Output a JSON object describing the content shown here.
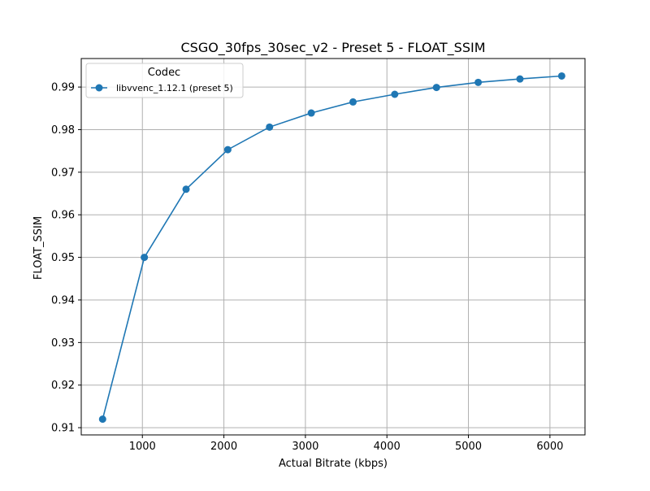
{
  "chart_data": {
    "type": "line",
    "title": "CSGO_30fps_30sec_v2 - Preset 5 - FLOAT_SSIM",
    "xlabel": "Actual Bitrate (kbps)",
    "ylabel": "FLOAT_SSIM",
    "xlim": [
      250,
      6430
    ],
    "ylim": [
      0.9083,
      0.9967
    ],
    "x_ticks": [
      1000,
      2000,
      3000,
      4000,
      5000,
      6000
    ],
    "y_ticks": [
      0.91,
      0.92,
      0.93,
      0.94,
      0.95,
      0.96,
      0.97,
      0.98,
      0.99
    ],
    "grid": true,
    "legend": {
      "title": "Codec",
      "placement": "top-left"
    },
    "series": [
      {
        "name": "libvvenc_1.12.1 (preset 5)",
        "color": "#1f77b4",
        "marker": "circle",
        "x": [
          512,
          1024,
          1536,
          2048,
          2560,
          3072,
          3584,
          4096,
          4608,
          5120,
          5632,
          6144
        ],
        "y": [
          0.912,
          0.95,
          0.966,
          0.9753,
          0.9806,
          0.9839,
          0.9865,
          0.9883,
          0.9899,
          0.9911,
          0.9919,
          0.9926
        ]
      }
    ]
  }
}
